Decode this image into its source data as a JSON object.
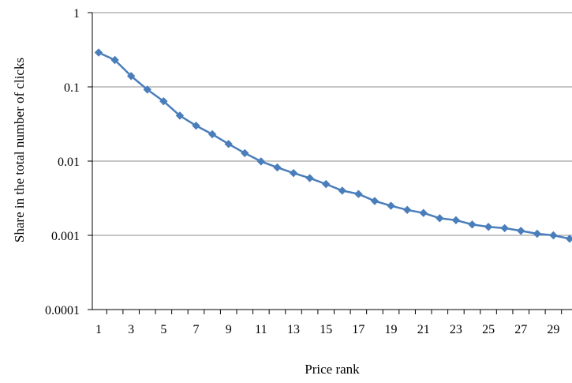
{
  "chart_data": {
    "type": "line",
    "title": "",
    "xlabel": "Price rank",
    "ylabel": "Share in the total number of clicks",
    "y_scale": "log",
    "ylim": [
      0.0001,
      1
    ],
    "xlim": [
      1,
      30
    ],
    "grid": "horizontal major gridlines",
    "legend": "none",
    "x_tick_labels": [
      "1",
      "3",
      "5",
      "7",
      "9",
      "11",
      "13",
      "15",
      "17",
      "19",
      "21",
      "23",
      "25",
      "27",
      "29"
    ],
    "y_tick_labels": [
      "1",
      "0.1",
      "0.01",
      "0.001",
      "0.0001"
    ],
    "series": [
      {
        "color": "#4a7ebb",
        "marker": "diamond",
        "x": [
          1,
          2,
          3,
          4,
          5,
          6,
          7,
          8,
          9,
          10,
          11,
          12,
          13,
          14,
          15,
          16,
          17,
          18,
          19,
          20,
          21,
          22,
          23,
          24,
          25,
          26,
          27,
          28,
          29,
          30
        ],
        "values": [
          0.29,
          0.23,
          0.14,
          0.092,
          0.064,
          0.041,
          0.03,
          0.023,
          0.017,
          0.0128,
          0.0099,
          0.0082,
          0.0069,
          0.0059,
          0.0049,
          0.004,
          0.0036,
          0.0029,
          0.0025,
          0.0022,
          0.002,
          0.0017,
          0.0016,
          0.0014,
          0.0013,
          0.00125,
          0.00115,
          0.00105,
          0.001,
          0.0009
        ]
      }
    ]
  }
}
